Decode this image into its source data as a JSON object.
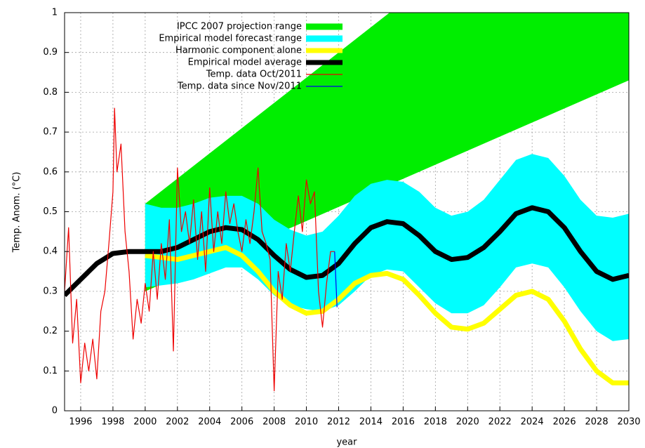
{
  "chart_data": {
    "type": "line",
    "xlabel": "year",
    "ylabel": "Temp. Anom. (°C)",
    "xlim": [
      1995,
      2030
    ],
    "ylim": [
      0,
      1
    ],
    "xticks": [
      1996,
      1998,
      2000,
      2002,
      2004,
      2006,
      2008,
      2010,
      2012,
      2014,
      2016,
      2018,
      2020,
      2022,
      2024,
      2026,
      2028,
      2030
    ],
    "yticks": [
      0,
      0.1,
      0.2,
      0.3,
      0.4,
      0.5,
      0.6,
      0.7,
      0.8,
      0.9,
      1
    ],
    "grid": true,
    "legend": "top-left",
    "series": [
      {
        "name": "IPCC 2007 projection range",
        "color": "#00ee00",
        "kind": "band",
        "x": [
          2000,
          2030
        ],
        "lower": [
          0.3,
          0.83
        ],
        "upper": [
          0.52,
          1.47
        ]
      },
      {
        "name": "Empirical model forecast range",
        "color": "#00ffff",
        "kind": "band",
        "x": [
          2000,
          2001,
          2002,
          2003,
          2004,
          2005,
          2006,
          2007,
          2008,
          2009,
          2010,
          2011,
          2012,
          2013,
          2014,
          2015,
          2016,
          2017,
          2018,
          2019,
          2020,
          2021,
          2022,
          2023,
          2024,
          2025,
          2026,
          2027,
          2028,
          2029,
          2030
        ],
        "lower": [
          0.31,
          0.315,
          0.32,
          0.33,
          0.345,
          0.36,
          0.36,
          0.33,
          0.29,
          0.265,
          0.255,
          0.25,
          0.265,
          0.3,
          0.34,
          0.355,
          0.35,
          0.31,
          0.27,
          0.245,
          0.245,
          0.265,
          0.31,
          0.36,
          0.37,
          0.36,
          0.31,
          0.25,
          0.2,
          0.175,
          0.18
        ],
        "upper": [
          0.52,
          0.51,
          0.51,
          0.52,
          0.535,
          0.54,
          0.54,
          0.52,
          0.48,
          0.455,
          0.44,
          0.45,
          0.49,
          0.54,
          0.57,
          0.58,
          0.575,
          0.55,
          0.51,
          0.49,
          0.5,
          0.53,
          0.58,
          0.63,
          0.645,
          0.635,
          0.59,
          0.53,
          0.49,
          0.485,
          0.495
        ]
      },
      {
        "name": "Harmonic component alone",
        "color": "#ffff00",
        "kind": "line",
        "style": "thick",
        "x": [
          2000,
          2001,
          2002,
          2003,
          2004,
          2005,
          2006,
          2007,
          2008,
          2009,
          2010,
          2011,
          2012,
          2013,
          2014,
          2015,
          2016,
          2017,
          2018,
          2019,
          2020,
          2021,
          2022,
          2023,
          2024,
          2025,
          2026,
          2027,
          2028,
          2029,
          2030
        ],
        "values": [
          0.39,
          0.385,
          0.38,
          0.39,
          0.4,
          0.41,
          0.39,
          0.35,
          0.3,
          0.265,
          0.245,
          0.25,
          0.28,
          0.32,
          0.34,
          0.345,
          0.33,
          0.29,
          0.245,
          0.21,
          0.205,
          0.22,
          0.255,
          0.29,
          0.3,
          0.28,
          0.225,
          0.155,
          0.1,
          0.07,
          0.07
        ]
      },
      {
        "name": "Empirical model average",
        "color": "#000000",
        "kind": "line",
        "style": "thick",
        "x": [
          1995,
          1996,
          1997,
          1998,
          1999,
          2000,
          2001,
          2002,
          2003,
          2004,
          2005,
          2006,
          2007,
          2008,
          2009,
          2010,
          2011,
          2012,
          2013,
          2014,
          2015,
          2016,
          2017,
          2018,
          2019,
          2020,
          2021,
          2022,
          2023,
          2024,
          2025,
          2026,
          2027,
          2028,
          2029,
          2030
        ],
        "values": [
          0.29,
          0.33,
          0.37,
          0.395,
          0.4,
          0.4,
          0.4,
          0.41,
          0.43,
          0.45,
          0.46,
          0.455,
          0.43,
          0.39,
          0.355,
          0.335,
          0.34,
          0.37,
          0.42,
          0.46,
          0.475,
          0.47,
          0.44,
          0.4,
          0.38,
          0.385,
          0.41,
          0.45,
          0.495,
          0.51,
          0.5,
          0.46,
          0.4,
          0.35,
          0.33,
          0.34
        ]
      },
      {
        "name": "Temp. data Oct/2011",
        "color": "#ee0000",
        "kind": "line",
        "style": "thin",
        "x": [
          1995.0,
          1995.25,
          1995.5,
          1995.75,
          1996.0,
          1996.25,
          1996.5,
          1996.75,
          1997.0,
          1997.25,
          1997.5,
          1997.75,
          1998.0,
          1998.1,
          1998.25,
          1998.5,
          1998.75,
          1999.0,
          1999.25,
          1999.5,
          1999.75,
          2000.0,
          2000.25,
          2000.5,
          2000.75,
          2001.0,
          2001.25,
          2001.5,
          2001.75,
          2002.0,
          2002.25,
          2002.5,
          2002.75,
          2003.0,
          2003.25,
          2003.5,
          2003.75,
          2004.0,
          2004.25,
          2004.5,
          2004.75,
          2005.0,
          2005.25,
          2005.5,
          2005.75,
          2006.0,
          2006.25,
          2006.5,
          2006.75,
          2007.0,
          2007.25,
          2007.5,
          2007.75,
          2008.0,
          2008.25,
          2008.5,
          2008.75,
          2009.0,
          2009.25,
          2009.5,
          2009.75,
          2010.0,
          2010.25,
          2010.5,
          2010.75,
          2011.0,
          2011.25,
          2011.5,
          2011.75
        ],
        "values": [
          0.3,
          0.46,
          0.17,
          0.28,
          0.07,
          0.17,
          0.1,
          0.18,
          0.08,
          0.25,
          0.3,
          0.42,
          0.55,
          0.76,
          0.6,
          0.67,
          0.45,
          0.35,
          0.18,
          0.28,
          0.22,
          0.32,
          0.25,
          0.4,
          0.28,
          0.42,
          0.33,
          0.48,
          0.15,
          0.61,
          0.45,
          0.5,
          0.42,
          0.53,
          0.38,
          0.5,
          0.35,
          0.56,
          0.4,
          0.5,
          0.42,
          0.55,
          0.47,
          0.52,
          0.45,
          0.4,
          0.48,
          0.42,
          0.5,
          0.61,
          0.45,
          0.42,
          0.38,
          0.05,
          0.35,
          0.28,
          0.42,
          0.35,
          0.45,
          0.54,
          0.45,
          0.58,
          0.52,
          0.55,
          0.3,
          0.21,
          0.32,
          0.4,
          0.4
        ]
      },
      {
        "name": "Temp. data since Nov/2011",
        "color": "#0000ee",
        "kind": "line",
        "style": "thin",
        "x": [
          2011.75,
          2011.9
        ],
        "values": [
          0.4,
          0.26
        ]
      }
    ]
  }
}
